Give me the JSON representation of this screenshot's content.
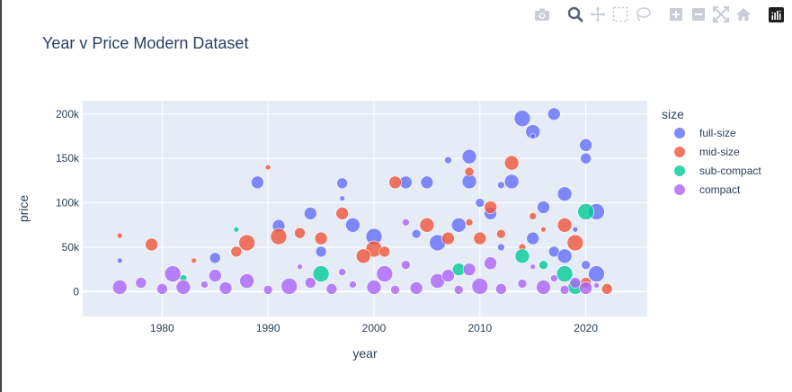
{
  "chart_data": {
    "type": "scatter",
    "title": "Year v Price Modern Dataset",
    "xlabel": "year",
    "ylabel": "price",
    "xlim": [
      1972.5,
      2025.8
    ],
    "ylim": [
      -28000,
      215000
    ],
    "x_ticks": [
      1980,
      1990,
      2000,
      2010,
      2020
    ],
    "x_tick_labels": [
      "1980",
      "1990",
      "2000",
      "2010",
      "2020"
    ],
    "y_ticks": [
      0,
      50000,
      100000,
      150000,
      200000
    ],
    "y_tick_labels": [
      "0",
      "50k",
      "100k",
      "150k",
      "200k"
    ],
    "grid": true,
    "legend_title": "size",
    "legend_position": "right",
    "series": [
      {
        "name": "full-size",
        "color": "#636efa",
        "points": [
          [
            1989,
            123000
          ],
          [
            1997,
            122000
          ],
          [
            1997,
            105000
          ],
          [
            1998,
            75000
          ],
          [
            2007,
            148000
          ],
          [
            2009,
            152000
          ],
          [
            2009,
            124000
          ],
          [
            2012,
            120000
          ],
          [
            2014,
            195000
          ],
          [
            2015,
            180000
          ],
          [
            2015,
            175000
          ],
          [
            2017,
            200000
          ],
          [
            2020,
            165000
          ],
          [
            2020,
            150000
          ],
          [
            2003,
            123000
          ],
          [
            2005,
            123000
          ],
          [
            2010,
            100000
          ],
          [
            2011,
            88000
          ],
          [
            1994,
            88000
          ],
          [
            1991,
            74000
          ],
          [
            2013,
            124000
          ],
          [
            2018,
            110000
          ],
          [
            2016,
            95000
          ],
          [
            2021,
            90000
          ],
          [
            2008,
            75000
          ],
          [
            2000,
            62000
          ],
          [
            2004,
            65000
          ],
          [
            2015,
            60000
          ],
          [
            2019,
            70000
          ],
          [
            1976,
            35000
          ],
          [
            1985,
            38000
          ],
          [
            1995,
            45000
          ],
          [
            2006,
            55000
          ],
          [
            2012,
            50000
          ],
          [
            2017,
            45000
          ],
          [
            2021,
            20000
          ],
          [
            2020,
            30000
          ],
          [
            2018,
            40000
          ]
        ]
      },
      {
        "name": "mid-size",
        "color": "#ef553b",
        "points": [
          [
            1976,
            63000
          ],
          [
            1979,
            53000
          ],
          [
            1990,
            140000
          ],
          [
            2002,
            123000
          ],
          [
            2009,
            135000
          ],
          [
            2013,
            145000
          ],
          [
            1997,
            88000
          ],
          [
            2009,
            78000
          ],
          [
            2015,
            85000
          ],
          [
            2011,
            95000
          ],
          [
            1993,
            66000
          ],
          [
            1995,
            60000
          ],
          [
            2005,
            75000
          ],
          [
            2012,
            65000
          ],
          [
            2016,
            70000
          ],
          [
            1988,
            55000
          ],
          [
            2000,
            48000
          ],
          [
            2007,
            60000
          ],
          [
            2018,
            75000
          ],
          [
            2022,
            3000
          ],
          [
            2020,
            10000
          ],
          [
            1983,
            35000
          ],
          [
            1987,
            45000
          ],
          [
            1999,
            40000
          ],
          [
            2014,
            50000
          ],
          [
            2019,
            55000
          ],
          [
            1991,
            62000
          ],
          [
            2001,
            45000
          ],
          [
            2010,
            60000
          ]
        ]
      },
      {
        "name": "sub-compact",
        "color": "#00cc96",
        "points": [
          [
            1987,
            70000
          ],
          [
            2014,
            40000
          ],
          [
            2020,
            90000
          ],
          [
            2018,
            20000
          ],
          [
            1982,
            15000
          ],
          [
            1995,
            20000
          ],
          [
            2008,
            25000
          ],
          [
            2016,
            30000
          ],
          [
            2019,
            5000
          ]
        ]
      },
      {
        "name": "compact",
        "color": "#ab63fa",
        "points": [
          [
            1976,
            5000
          ],
          [
            1978,
            10000
          ],
          [
            1980,
            3000
          ],
          [
            1982,
            5000
          ],
          [
            1984,
            8000
          ],
          [
            1986,
            4000
          ],
          [
            1988,
            12000
          ],
          [
            1990,
            2000
          ],
          [
            1992,
            6000
          ],
          [
            1994,
            10000
          ],
          [
            1996,
            3000
          ],
          [
            1998,
            8000
          ],
          [
            2000,
            5000
          ],
          [
            2001,
            20000
          ],
          [
            2002,
            2000
          ],
          [
            2004,
            4000
          ],
          [
            2006,
            12000
          ],
          [
            2008,
            2000
          ],
          [
            2010,
            6000
          ],
          [
            2012,
            3000
          ],
          [
            2014,
            9000
          ],
          [
            2016,
            5000
          ],
          [
            2018,
            2000
          ],
          [
            2020,
            4000
          ],
          [
            2003,
            30000
          ],
          [
            2009,
            25000
          ],
          [
            2011,
            32000
          ],
          [
            2015,
            28000
          ],
          [
            1985,
            18000
          ],
          [
            1997,
            22000
          ],
          [
            2003,
            78000
          ],
          [
            1981,
            20000
          ],
          [
            1993,
            28000
          ],
          [
            2007,
            18000
          ],
          [
            2017,
            15000
          ],
          [
            2019,
            10000
          ],
          [
            2021,
            7000
          ]
        ]
      }
    ]
  }
}
